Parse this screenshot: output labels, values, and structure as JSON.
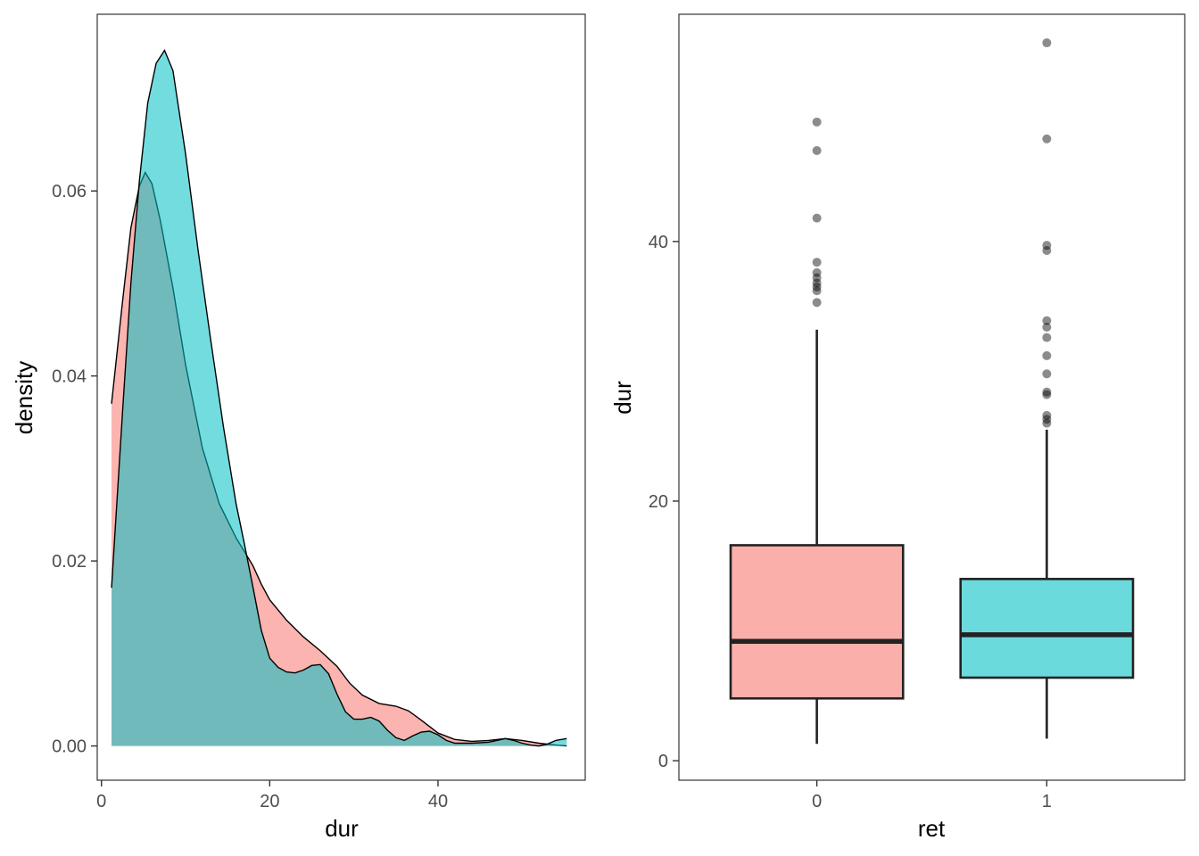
{
  "chart_data": [
    {
      "type": "area",
      "kind": "density",
      "xlabel": "dur",
      "ylabel": "density",
      "xlim": [
        -0.5,
        57.5
      ],
      "ylim": [
        -0.0037,
        0.0791
      ],
      "x_ticks": [
        0,
        20,
        40
      ],
      "x_tick_labels": [
        "0",
        "20",
        "40"
      ],
      "y_ticks": [
        0.0,
        0.02,
        0.04,
        0.06
      ],
      "y_tick_labels": [
        "0.00",
        "0.02",
        "0.04",
        "0.06"
      ],
      "grid": false,
      "legend": "none",
      "series": [
        {
          "name": "0",
          "color": "#F8766D",
          "points": [
            [
              1.2,
              0.037
            ],
            [
              2.5,
              0.048
            ],
            [
              3.5,
              0.056
            ],
            [
              4.5,
              0.0605
            ],
            [
              5.2,
              0.062
            ],
            [
              6.0,
              0.0608
            ],
            [
              7.0,
              0.0568
            ],
            [
              8.5,
              0.0495
            ],
            [
              10.0,
              0.0412
            ],
            [
              12.0,
              0.0322
            ],
            [
              14.0,
              0.0262
            ],
            [
              16.0,
              0.0225
            ],
            [
              18.0,
              0.0195
            ],
            [
              19.0,
              0.0175
            ],
            [
              20.0,
              0.0158
            ],
            [
              22.0,
              0.0136
            ],
            [
              24.0,
              0.0118
            ],
            [
              26.0,
              0.0103
            ],
            [
              28.0,
              0.0086
            ],
            [
              29.5,
              0.0068
            ],
            [
              31.0,
              0.0055
            ],
            [
              33.0,
              0.0046
            ],
            [
              35.0,
              0.0043
            ],
            [
              36.5,
              0.0038
            ],
            [
              38.0,
              0.0028
            ],
            [
              40.0,
              0.0014
            ],
            [
              42.0,
              0.0007
            ],
            [
              44.0,
              0.0005
            ],
            [
              46.0,
              0.0006
            ],
            [
              48.0,
              0.0008
            ],
            [
              50.0,
              0.0006
            ],
            [
              52.0,
              0.0003
            ],
            [
              54.0,
              0.0001
            ],
            [
              55.3,
              0.0
            ]
          ]
        },
        {
          "name": "1",
          "color": "#00BFC4",
          "points": [
            [
              1.2,
              0.0171
            ],
            [
              2.5,
              0.036
            ],
            [
              3.5,
              0.05
            ],
            [
              4.5,
              0.061
            ],
            [
              5.5,
              0.0695
            ],
            [
              6.5,
              0.0738
            ],
            [
              7.5,
              0.0752
            ],
            [
              8.5,
              0.073
            ],
            [
              10.0,
              0.064
            ],
            [
              11.5,
              0.0535
            ],
            [
              13.0,
              0.0438
            ],
            [
              14.5,
              0.0345
            ],
            [
              16.0,
              0.0262
            ],
            [
              17.0,
              0.0218
            ],
            [
              18.0,
              0.0172
            ],
            [
              19.0,
              0.0125
            ],
            [
              20.0,
              0.0095
            ],
            [
              21.0,
              0.0085
            ],
            [
              22.0,
              0.008
            ],
            [
              23.0,
              0.0079
            ],
            [
              24.0,
              0.0082
            ],
            [
              25.0,
              0.0087
            ],
            [
              26.0,
              0.0088
            ],
            [
              27.0,
              0.0078
            ],
            [
              28.0,
              0.0056
            ],
            [
              29.0,
              0.0037
            ],
            [
              30.0,
              0.0029
            ],
            [
              31.0,
              0.0029
            ],
            [
              32.0,
              0.0031
            ],
            [
              33.0,
              0.0027
            ],
            [
              34.0,
              0.0017
            ],
            [
              35.0,
              0.0009
            ],
            [
              36.0,
              0.0006
            ],
            [
              37.0,
              0.0011
            ],
            [
              38.0,
              0.0015
            ],
            [
              39.0,
              0.0016
            ],
            [
              40.0,
              0.0012
            ],
            [
              41.0,
              0.0006
            ],
            [
              42.0,
              0.0003
            ],
            [
              44.0,
              0.0003
            ],
            [
              46.0,
              0.0004
            ],
            [
              47.0,
              0.0006
            ],
            [
              48.0,
              0.0008
            ],
            [
              49.0,
              0.0006
            ],
            [
              50.0,
              0.0003
            ],
            [
              51.0,
              0.0001
            ],
            [
              52.0,
              0.0
            ],
            [
              53.0,
              0.0002
            ],
            [
              54.0,
              0.0006
            ],
            [
              55.3,
              0.0008
            ]
          ]
        }
      ]
    },
    {
      "type": "box",
      "xlabel": "ret",
      "ylabel": "dur",
      "categories": [
        "0",
        "1"
      ],
      "ylim": [
        -1.5,
        57.5
      ],
      "y_ticks": [
        0,
        20,
        40
      ],
      "y_tick_labels": [
        "0",
        "20",
        "40"
      ],
      "grid": false,
      "legend": "none",
      "boxes": [
        {
          "name": "0",
          "color": "#F8766D",
          "min": 1.3,
          "q1": 4.8,
          "median": 9.2,
          "q3": 16.6,
          "max": 33.2,
          "outliers": [
            35.3,
            36.2,
            36.5,
            36.8,
            37.2,
            37.6,
            38.4,
            41.8,
            47.0,
            49.2
          ]
        },
        {
          "name": "1",
          "color": "#00BFC4",
          "min": 1.7,
          "q1": 6.4,
          "median": 9.7,
          "q3": 14.0,
          "max": 25.5,
          "outliers": [
            26.0,
            26.3,
            26.6,
            28.2,
            28.4,
            29.8,
            31.2,
            32.6,
            33.4,
            33.9,
            39.3,
            39.7,
            47.9,
            55.3
          ]
        }
      ]
    }
  ]
}
